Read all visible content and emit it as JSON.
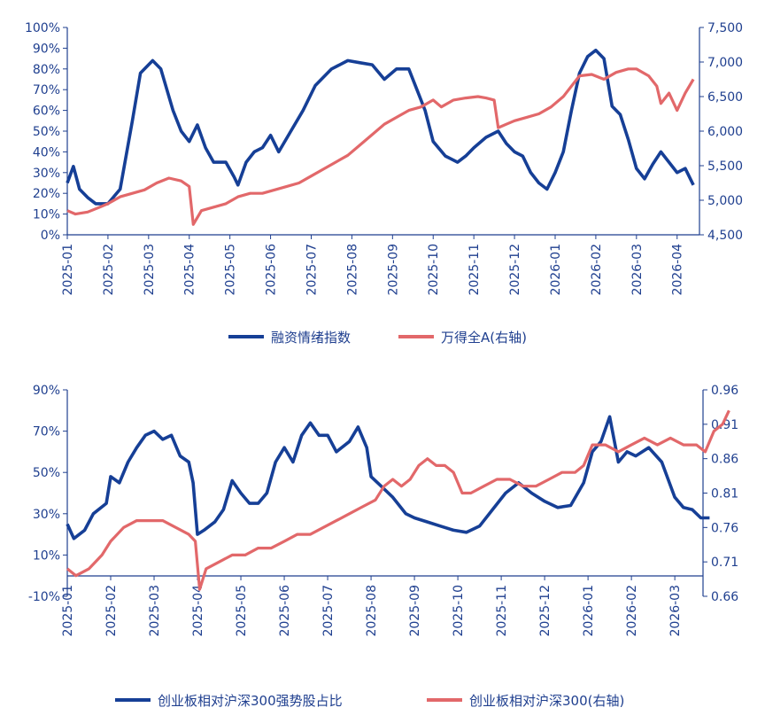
{
  "colors": {
    "blue": "#163f96",
    "red": "#e2686a",
    "axis": "#1f3f8f",
    "text": "#1f3f8f"
  },
  "chart_data": [
    {
      "type": "line",
      "x": [
        "2025-01",
        "2025-02",
        "2025-03",
        "2025-04",
        "2025-05",
        "2025-06",
        "2025-07",
        "2025-08",
        "2025-09",
        "2025-10",
        "2025-11",
        "2025-12",
        "2026-01",
        "2026-02",
        "2026-03",
        "2026-04"
      ],
      "left_axis": {
        "ticks": [
          "0%",
          "10%",
          "20%",
          "30%",
          "40%",
          "50%",
          "60%",
          "70%",
          "80%",
          "90%",
          "100%"
        ],
        "range": [
          0,
          100
        ]
      },
      "right_axis": {
        "ticks": [
          "4,500",
          "5,000",
          "5,500",
          "6,000",
          "6,500",
          "7,000",
          "7,500"
        ],
        "range": [
          4500,
          7500
        ]
      },
      "series": [
        {
          "name": "融资情绪指数",
          "axis": "left",
          "color": "#163f96",
          "points": [
            [
              0,
              25
            ],
            [
              0.15,
              33
            ],
            [
              0.3,
              22
            ],
            [
              0.5,
              18
            ],
            [
              0.7,
              15
            ],
            [
              1.0,
              15
            ],
            [
              1.3,
              22
            ],
            [
              1.6,
              55
            ],
            [
              1.8,
              78
            ],
            [
              2.1,
              84
            ],
            [
              2.3,
              80
            ],
            [
              2.6,
              60
            ],
            [
              2.8,
              50
            ],
            [
              3.0,
              45
            ],
            [
              3.2,
              53
            ],
            [
              3.4,
              42
            ],
            [
              3.6,
              35
            ],
            [
              3.9,
              35
            ],
            [
              4.1,
              28
            ],
            [
              4.2,
              24
            ],
            [
              4.4,
              35
            ],
            [
              4.6,
              40
            ],
            [
              4.8,
              42
            ],
            [
              5.0,
              48
            ],
            [
              5.2,
              40
            ],
            [
              5.5,
              50
            ],
            [
              5.8,
              60
            ],
            [
              6.1,
              72
            ],
            [
              6.5,
              80
            ],
            [
              6.9,
              84
            ],
            [
              7.2,
              83
            ],
            [
              7.5,
              82
            ],
            [
              7.8,
              75
            ],
            [
              8.1,
              80
            ],
            [
              8.4,
              80
            ],
            [
              8.6,
              70
            ],
            [
              8.8,
              60
            ],
            [
              9.0,
              45
            ],
            [
              9.3,
              38
            ],
            [
              9.6,
              35
            ],
            [
              9.8,
              38
            ],
            [
              10.0,
              42
            ],
            [
              10.3,
              47
            ],
            [
              10.6,
              50
            ],
            [
              10.8,
              44
            ],
            [
              11.0,
              40
            ],
            [
              11.2,
              38
            ],
            [
              11.4,
              30
            ],
            [
              11.6,
              25
            ],
            [
              11.8,
              22
            ],
            [
              12.0,
              30
            ],
            [
              12.2,
              40
            ],
            [
              12.4,
              60
            ],
            [
              12.6,
              78
            ],
            [
              12.8,
              86
            ],
            [
              13.0,
              89
            ],
            [
              13.2,
              85
            ],
            [
              13.4,
              62
            ],
            [
              13.6,
              58
            ],
            [
              13.8,
              46
            ],
            [
              14.0,
              32
            ],
            [
              14.2,
              27
            ],
            [
              14.4,
              34
            ],
            [
              14.6,
              40
            ],
            [
              14.8,
              35
            ],
            [
              15.0,
              30
            ],
            [
              15.2,
              32
            ],
            [
              15.4,
              24
            ]
          ]
        },
        {
          "name": "万得全A(右轴)",
          "axis": "right",
          "color": "#e2686a",
          "points": [
            [
              0,
              4850
            ],
            [
              0.2,
              4800
            ],
            [
              0.5,
              4830
            ],
            [
              0.8,
              4900
            ],
            [
              1.0,
              4950
            ],
            [
              1.3,
              5050
            ],
            [
              1.6,
              5100
            ],
            [
              1.9,
              5150
            ],
            [
              2.2,
              5250
            ],
            [
              2.5,
              5320
            ],
            [
              2.8,
              5280
            ],
            [
              3.0,
              5200
            ],
            [
              3.1,
              4650
            ],
            [
              3.3,
              4850
            ],
            [
              3.6,
              4900
            ],
            [
              3.9,
              4950
            ],
            [
              4.2,
              5050
            ],
            [
              4.5,
              5100
            ],
            [
              4.8,
              5100
            ],
            [
              5.1,
              5150
            ],
            [
              5.4,
              5200
            ],
            [
              5.7,
              5250
            ],
            [
              6.0,
              5350
            ],
            [
              6.3,
              5450
            ],
            [
              6.6,
              5550
            ],
            [
              6.9,
              5650
            ],
            [
              7.2,
              5800
            ],
            [
              7.5,
              5950
            ],
            [
              7.8,
              6100
            ],
            [
              8.1,
              6200
            ],
            [
              8.4,
              6300
            ],
            [
              8.7,
              6350
            ],
            [
              9.0,
              6450
            ],
            [
              9.2,
              6350
            ],
            [
              9.5,
              6450
            ],
            [
              9.8,
              6480
            ],
            [
              10.1,
              6500
            ],
            [
              10.3,
              6480
            ],
            [
              10.5,
              6450
            ],
            [
              10.6,
              6050
            ],
            [
              10.8,
              6100
            ],
            [
              11.0,
              6150
            ],
            [
              11.3,
              6200
            ],
            [
              11.6,
              6250
            ],
            [
              11.9,
              6350
            ],
            [
              12.2,
              6500
            ],
            [
              12.4,
              6650
            ],
            [
              12.6,
              6800
            ],
            [
              12.9,
              6820
            ],
            [
              13.2,
              6750
            ],
            [
              13.5,
              6850
            ],
            [
              13.8,
              6900
            ],
            [
              14.0,
              6900
            ],
            [
              14.3,
              6800
            ],
            [
              14.5,
              6650
            ],
            [
              14.6,
              6400
            ],
            [
              14.8,
              6550
            ],
            [
              15.0,
              6300
            ],
            [
              15.2,
              6550
            ],
            [
              15.4,
              6750
            ]
          ]
        }
      ]
    },
    {
      "type": "line",
      "x": [
        "2025-01",
        "2025-02",
        "2025-03",
        "2025-04",
        "2025-05",
        "2025-06",
        "2025-07",
        "2025-08",
        "2025-09",
        "2025-10",
        "2025-11",
        "2025-12",
        "2026-01",
        "2026-02",
        "2026-03"
      ],
      "left_axis": {
        "ticks": [
          "-10%",
          "10%",
          "30%",
          "50%",
          "70%",
          "90%"
        ],
        "range": [
          -10,
          90
        ]
      },
      "right_axis": {
        "ticks": [
          "0.66",
          "0.71",
          "0.76",
          "0.81",
          "0.86",
          "0.91",
          "0.96"
        ],
        "range": [
          0.66,
          0.96
        ]
      },
      "series": [
        {
          "name": "创业板相对沪深300强势股占比",
          "axis": "left",
          "color": "#163f96",
          "points": [
            [
              0,
              25
            ],
            [
              0.15,
              18
            ],
            [
              0.4,
              22
            ],
            [
              0.6,
              30
            ],
            [
              0.9,
              35
            ],
            [
              1.0,
              48
            ],
            [
              1.2,
              45
            ],
            [
              1.4,
              55
            ],
            [
              1.6,
              62
            ],
            [
              1.8,
              68
            ],
            [
              2.0,
              70
            ],
            [
              2.2,
              66
            ],
            [
              2.4,
              68
            ],
            [
              2.6,
              58
            ],
            [
              2.8,
              55
            ],
            [
              2.9,
              45
            ],
            [
              3.0,
              20
            ],
            [
              3.15,
              22
            ],
            [
              3.4,
              26
            ],
            [
              3.6,
              32
            ],
            [
              3.8,
              46
            ],
            [
              4.0,
              40
            ],
            [
              4.2,
              35
            ],
            [
              4.4,
              35
            ],
            [
              4.6,
              40
            ],
            [
              4.8,
              55
            ],
            [
              5.0,
              62
            ],
            [
              5.2,
              55
            ],
            [
              5.4,
              68
            ],
            [
              5.6,
              74
            ],
            [
              5.8,
              68
            ],
            [
              6.0,
              68
            ],
            [
              6.2,
              60
            ],
            [
              6.5,
              65
            ],
            [
              6.7,
              72
            ],
            [
              6.9,
              62
            ],
            [
              7.0,
              48
            ],
            [
              7.2,
              44
            ],
            [
              7.5,
              38
            ],
            [
              7.8,
              30
            ],
            [
              8.0,
              28
            ],
            [
              8.3,
              26
            ],
            [
              8.6,
              24
            ],
            [
              8.9,
              22
            ],
            [
              9.2,
              21
            ],
            [
              9.5,
              24
            ],
            [
              9.8,
              32
            ],
            [
              10.1,
              40
            ],
            [
              10.4,
              45
            ],
            [
              10.7,
              40
            ],
            [
              11.0,
              36
            ],
            [
              11.3,
              33
            ],
            [
              11.6,
              34
            ],
            [
              11.9,
              45
            ],
            [
              12.1,
              60
            ],
            [
              12.3,
              65
            ],
            [
              12.5,
              77
            ],
            [
              12.7,
              55
            ],
            [
              12.9,
              60
            ],
            [
              13.1,
              58
            ],
            [
              13.4,
              62
            ],
            [
              13.7,
              55
            ],
            [
              14.0,
              38
            ],
            [
              14.2,
              33
            ],
            [
              14.4,
              32
            ],
            [
              14.6,
              28
            ],
            [
              14.8,
              28
            ]
          ]
        },
        {
          "name": "创业板相对沪深300(右轴)",
          "axis": "right",
          "color": "#e2686a",
          "points": [
            [
              0,
              0.7
            ],
            [
              0.2,
              0.69
            ],
            [
              0.5,
              0.7
            ],
            [
              0.8,
              0.72
            ],
            [
              1.0,
              0.74
            ],
            [
              1.3,
              0.76
            ],
            [
              1.6,
              0.77
            ],
            [
              1.9,
              0.77
            ],
            [
              2.2,
              0.77
            ],
            [
              2.5,
              0.76
            ],
            [
              2.8,
              0.75
            ],
            [
              2.95,
              0.74
            ],
            [
              3.05,
              0.67
            ],
            [
              3.2,
              0.7
            ],
            [
              3.5,
              0.71
            ],
            [
              3.8,
              0.72
            ],
            [
              4.1,
              0.72
            ],
            [
              4.4,
              0.73
            ],
            [
              4.7,
              0.73
            ],
            [
              5.0,
              0.74
            ],
            [
              5.3,
              0.75
            ],
            [
              5.6,
              0.75
            ],
            [
              5.9,
              0.76
            ],
            [
              6.2,
              0.77
            ],
            [
              6.5,
              0.78
            ],
            [
              6.8,
              0.79
            ],
            [
              7.1,
              0.8
            ],
            [
              7.3,
              0.82
            ],
            [
              7.5,
              0.83
            ],
            [
              7.7,
              0.82
            ],
            [
              7.9,
              0.83
            ],
            [
              8.1,
              0.85
            ],
            [
              8.3,
              0.86
            ],
            [
              8.5,
              0.85
            ],
            [
              8.7,
              0.85
            ],
            [
              8.9,
              0.84
            ],
            [
              9.1,
              0.81
            ],
            [
              9.3,
              0.81
            ],
            [
              9.6,
              0.82
            ],
            [
              9.9,
              0.83
            ],
            [
              10.2,
              0.83
            ],
            [
              10.5,
              0.82
            ],
            [
              10.8,
              0.82
            ],
            [
              11.1,
              0.83
            ],
            [
              11.4,
              0.84
            ],
            [
              11.7,
              0.84
            ],
            [
              11.9,
              0.85
            ],
            [
              12.1,
              0.88
            ],
            [
              12.4,
              0.88
            ],
            [
              12.7,
              0.87
            ],
            [
              13.0,
              0.88
            ],
            [
              13.3,
              0.89
            ],
            [
              13.6,
              0.88
            ],
            [
              13.9,
              0.89
            ],
            [
              14.2,
              0.88
            ],
            [
              14.5,
              0.88
            ],
            [
              14.7,
              0.87
            ],
            [
              14.9,
              0.9
            ],
            [
              15.1,
              0.91
            ],
            [
              15.25,
              0.93
            ]
          ]
        }
      ]
    }
  ]
}
